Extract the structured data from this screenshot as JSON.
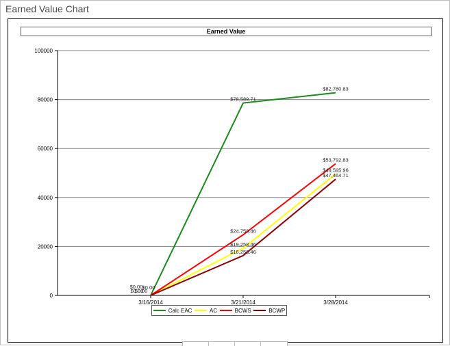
{
  "window": {
    "title": "Earned Value Chart"
  },
  "chart_data": {
    "type": "line",
    "title": "Earned Value",
    "categories": [
      "3/16/2014",
      "3/21/2014",
      "3/28/2014"
    ],
    "ylim": [
      0,
      100000
    ],
    "yticks": [
      "0",
      "20000",
      "40000",
      "60000",
      "80000",
      "100000"
    ],
    "grid": true,
    "legend_position": "bottom",
    "series": [
      {
        "name": "Calc EAC",
        "color": "#1a8a1a",
        "values": [
          0,
          78589.71,
          82780.83
        ],
        "labels": [
          "$0.00",
          "$78,589.71",
          "$82,780.83"
        ]
      },
      {
        "name": "AC",
        "color": "#ffff00",
        "values": [
          0,
          19258.46,
          49595.96
        ],
        "labels": [
          "$0.00",
          "$19,258.46",
          "$49,595.96"
        ]
      },
      {
        "name": "BCWS",
        "color": "#ff0000",
        "values": [
          0,
          24758.46,
          53792.83
        ],
        "labels": [
          "$0.00",
          "$24,758.46",
          "$53,792.83"
        ]
      },
      {
        "name": "BCWP",
        "color": "#8b0000",
        "values": [
          0,
          16258.46,
          47464.71
        ],
        "labels": [
          "$0.00",
          "$16,258.46",
          "$47,464.71"
        ]
      }
    ]
  }
}
